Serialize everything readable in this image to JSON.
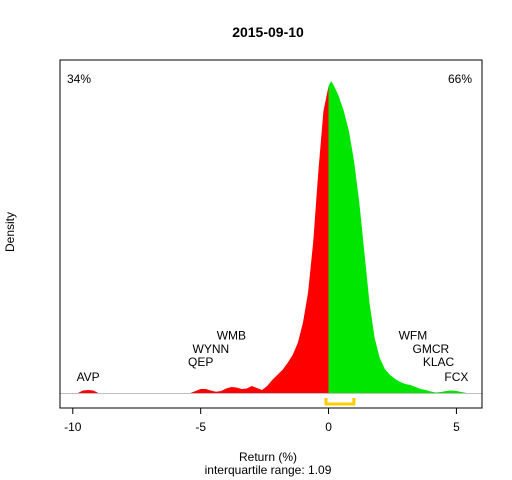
{
  "chart_data": {
    "type": "area",
    "title": "2015-09-10",
    "xlabel": "Return (%)",
    "ylabel": "Density",
    "subtitle": "interquartile range: 1.09",
    "xlim": [
      -10.5,
      6.0
    ],
    "ylim": [
      0,
      0.32
    ],
    "x_ticks": [
      -10,
      -5,
      0,
      5
    ],
    "x_tick_labels": [
      "-10",
      "-5",
      "0",
      "5"
    ],
    "split_at": 0,
    "colors": {
      "negative": "#ff0000",
      "positive": "#00e600",
      "iqr": "#ffcc00",
      "baseline": "#bebebe"
    },
    "percentages": [
      {
        "label": "34%",
        "color": "#ff0000",
        "position": "top-left"
      },
      {
        "label": "66%",
        "color": "#00aa00",
        "position": "top-right"
      }
    ],
    "iqr_range": [
      -0.1,
      0.99
    ],
    "density": [
      [
        -9.8,
        0
      ],
      [
        -9.6,
        0.0025
      ],
      [
        -9.4,
        0.003
      ],
      [
        -9.2,
        0.0025
      ],
      [
        -9.0,
        0
      ],
      [
        -5.4,
        0
      ],
      [
        -5.2,
        0.002
      ],
      [
        -5.0,
        0.004
      ],
      [
        -4.8,
        0.004
      ],
      [
        -4.6,
        0.0025
      ],
      [
        -4.4,
        0.0012
      ],
      [
        -4.2,
        0.002
      ],
      [
        -4.0,
        0.0045
      ],
      [
        -3.8,
        0.006
      ],
      [
        -3.6,
        0.0055
      ],
      [
        -3.4,
        0.004
      ],
      [
        -3.2,
        0.0045
      ],
      [
        -3.0,
        0.007
      ],
      [
        -2.8,
        0.005
      ],
      [
        -2.6,
        0.003
      ],
      [
        -2.4,
        0.007
      ],
      [
        -2.2,
        0.013
      ],
      [
        -2.0,
        0.018
      ],
      [
        -1.8,
        0.023
      ],
      [
        -1.6,
        0.03
      ],
      [
        -1.4,
        0.038
      ],
      [
        -1.2,
        0.05
      ],
      [
        -1.0,
        0.07
      ],
      [
        -0.8,
        0.1
      ],
      [
        -0.6,
        0.15
      ],
      [
        -0.4,
        0.22
      ],
      [
        -0.2,
        0.28
      ],
      [
        0.0,
        0.305
      ],
      [
        0.1,
        0.31
      ],
      [
        0.2,
        0.306
      ],
      [
        0.4,
        0.295
      ],
      [
        0.6,
        0.28
      ],
      [
        0.8,
        0.26
      ],
      [
        1.0,
        0.23
      ],
      [
        1.2,
        0.19
      ],
      [
        1.4,
        0.14
      ],
      [
        1.6,
        0.09
      ],
      [
        1.8,
        0.055
      ],
      [
        2.0,
        0.035
      ],
      [
        2.2,
        0.024
      ],
      [
        2.4,
        0.018
      ],
      [
        2.6,
        0.014
      ],
      [
        2.8,
        0.011
      ],
      [
        3.0,
        0.009
      ],
      [
        3.2,
        0.008
      ],
      [
        3.4,
        0.006
      ],
      [
        3.6,
        0.004
      ],
      [
        3.8,
        0.003
      ],
      [
        4.0,
        0.0015
      ],
      [
        4.2,
        0.0005
      ],
      [
        4.4,
        0.001
      ],
      [
        4.6,
        0.002
      ],
      [
        4.8,
        0.0025
      ],
      [
        5.0,
        0.002
      ],
      [
        5.2,
        0.001
      ],
      [
        5.4,
        0
      ]
    ],
    "stock_labels": [
      {
        "text": "AVP",
        "x": -9.4,
        "y": 0.012
      },
      {
        "text": "QEP",
        "x": -5.0,
        "y": 0.027
      },
      {
        "text": "WYNN",
        "x": -4.6,
        "y": 0.04
      },
      {
        "text": "WMB",
        "x": -3.8,
        "y": 0.053
      },
      {
        "text": "WFM",
        "x": 3.3,
        "y": 0.053
      },
      {
        "text": "GMCR",
        "x": 4.0,
        "y": 0.04
      },
      {
        "text": "KLAC",
        "x": 4.3,
        "y": 0.027
      },
      {
        "text": "FCX",
        "x": 5.0,
        "y": 0.012
      }
    ]
  }
}
